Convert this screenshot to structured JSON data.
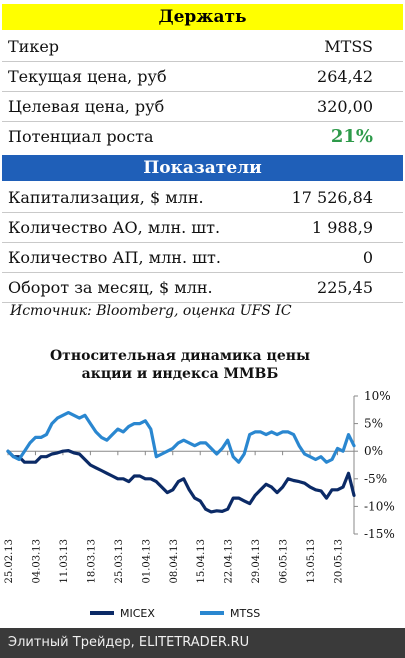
{
  "hold": {
    "title": "Держать",
    "rows": [
      {
        "label": "Тикер",
        "value": "MTSS"
      },
      {
        "label": "Текущая цена, руб",
        "value": "264,42"
      },
      {
        "label": "Целевая цена, руб",
        "value": "320,00"
      },
      {
        "label": "Потенциал роста",
        "value": "21%"
      }
    ],
    "potential_color": "#2e9a4a"
  },
  "indicators": {
    "title": "Показатели",
    "rows": [
      {
        "label": "Капитализация, $ млн.",
        "value": "17 526,84"
      },
      {
        "label": "Количество АО, млн. шт.",
        "value": "1 988,9"
      },
      {
        "label": "Количество АП, млн. шт.",
        "value": "0"
      },
      {
        "label": "Оборот за месяц, $ млн.",
        "value": "225,45"
      }
    ]
  },
  "source": "Источник: Bloomberg, оценка UFS IC",
  "colors": {
    "header_yellow": "#ffff00",
    "header_blue": "#1f5fb8",
    "micex": "#0b2a66",
    "mtss": "#2a87d0",
    "footer": "#3a3a3a"
  },
  "chart_data": {
    "type": "line",
    "title_lines": [
      "Относительная динамика цены",
      "акции и индекса ММВБ"
    ],
    "x": [
      "25.02.13",
      "26.02.13",
      "27.02.13",
      "28.02.13",
      "01.03.13",
      "04.03.13",
      "05.03.13",
      "06.03.13",
      "07.03.13",
      "08.03.13",
      "11.03.13",
      "12.03.13",
      "13.03.13",
      "14.03.13",
      "15.03.13",
      "18.03.13",
      "19.03.13",
      "20.03.13",
      "21.03.13",
      "22.03.13",
      "25.03.13",
      "26.03.13",
      "27.03.13",
      "28.03.13",
      "29.03.13",
      "01.04.13",
      "02.04.13",
      "03.04.13",
      "04.04.13",
      "05.04.13",
      "08.04.13",
      "09.04.13",
      "10.04.13",
      "11.04.13",
      "12.04.13",
      "15.04.13",
      "16.04.13",
      "17.04.13",
      "18.04.13",
      "19.04.13",
      "22.04.13",
      "23.04.13",
      "24.04.13",
      "25.04.13",
      "26.04.13",
      "29.04.13",
      "30.04.13",
      "01.05.13",
      "02.05.13",
      "03.05.13",
      "06.05.13",
      "07.05.13",
      "08.05.13",
      "09.05.13",
      "10.05.13",
      "13.05.13",
      "14.05.13",
      "15.05.13",
      "16.05.13",
      "17.05.13",
      "20.05.13",
      "21.05.13",
      "22.05.13",
      "23.05.13"
    ],
    "x_tick_labels": [
      "25.02.13",
      "04.03.13",
      "11.03.13",
      "18.03.13",
      "25.03.13",
      "01.04.13",
      "08.04.13",
      "15.04.13",
      "22.04.13",
      "29.04.13",
      "06.05.13",
      "13.05.13",
      "20.05.13"
    ],
    "x_tick_indices": [
      0,
      5,
      10,
      15,
      20,
      25,
      30,
      35,
      40,
      45,
      50,
      55,
      60
    ],
    "yaxis": {
      "min": -15,
      "max": 10,
      "step": 5,
      "format": "percent",
      "position": "right"
    },
    "grid": false,
    "legend": "bottom",
    "series": [
      {
        "name": "MICEX",
        "color": "#0b2a66",
        "values": [
          0,
          -1,
          -1,
          -2,
          -2,
          -2,
          -1,
          -1,
          -0.5,
          -0.3,
          0,
          0.1,
          -0.3,
          -0.5,
          -1.5,
          -2.5,
          -3,
          -3.5,
          -4,
          -4.5,
          -5,
          -5,
          -5.5,
          -4.5,
          -4.5,
          -5,
          -5,
          -5.5,
          -6.5,
          -7.5,
          -7,
          -5.5,
          -5,
          -7,
          -8.5,
          -9,
          -10.5,
          -11,
          -10.8,
          -10.9,
          -10.5,
          -8.5,
          -8.5,
          -9,
          -9.5,
          -8,
          -7,
          -6,
          -6.5,
          -7.5,
          -6.5,
          -5,
          -5.3,
          -5.5,
          -5.8,
          -6.5,
          -7,
          -7.2,
          -8.5,
          -7,
          -7,
          -6.5,
          -4,
          -8
        ]
      },
      {
        "name": "MTSS",
        "color": "#2a87d0",
        "values": [
          0,
          -1,
          -1.5,
          0,
          1.5,
          2.5,
          2.5,
          3,
          5,
          6,
          6.5,
          7,
          6.5,
          6,
          6.5,
          5,
          3.5,
          2.5,
          2,
          3,
          4,
          3.5,
          4.5,
          5,
          5,
          5.5,
          4,
          -1,
          -0.5,
          0,
          0.5,
          1.5,
          2,
          1.5,
          1,
          1.5,
          1.5,
          0.5,
          -0.5,
          0.5,
          2,
          -1,
          -2,
          -0.5,
          3,
          3.5,
          3.5,
          3,
          3.5,
          3,
          3.5,
          3.5,
          3,
          1,
          -0.5,
          -1,
          -1.5,
          -1,
          -2,
          -1.5,
          0.5,
          0,
          3,
          1
        ]
      }
    ]
  },
  "footer": "Элитный Трейдер, ELITETRADER.RU"
}
